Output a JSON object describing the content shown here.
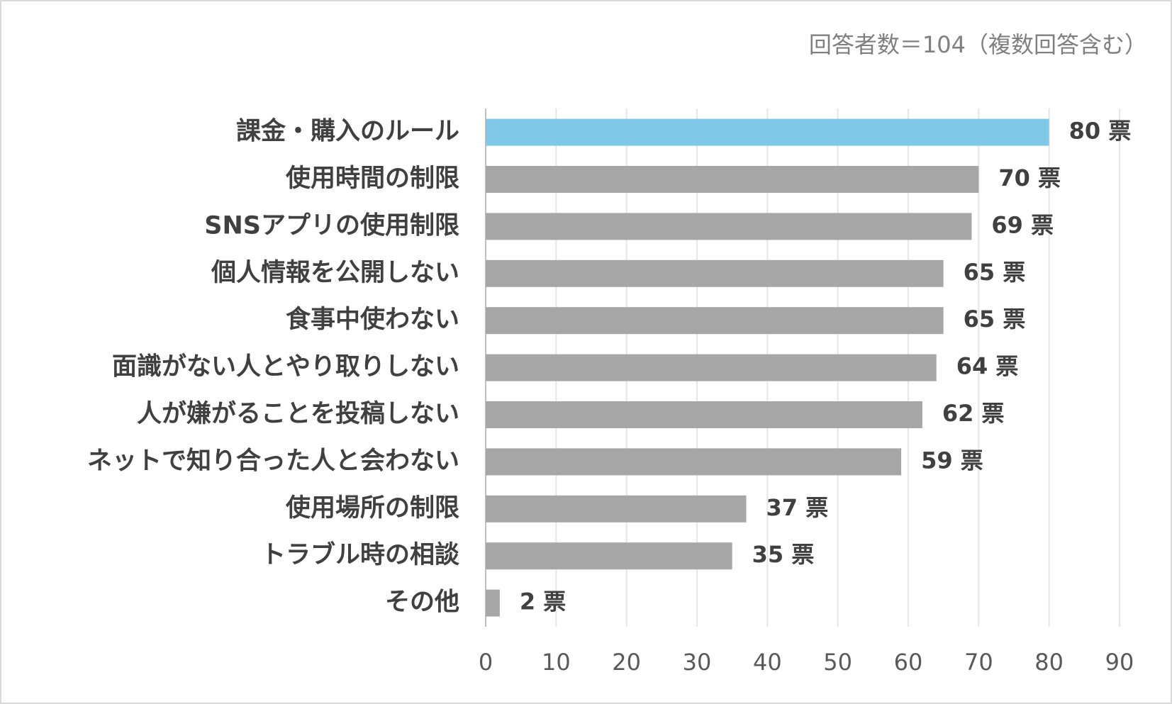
{
  "chart_data": {
    "type": "hbar",
    "subtitle": "回答者数＝104（複数回答含む）",
    "categories": [
      "課金・購入のルール",
      "使用時間の制限",
      "SNSアプリの使用制限",
      "個人情報を公開しない",
      "食事中使わない",
      "面識がない人とやり取りしない",
      "人が嫌がることを投稿しない",
      "ネットで知り合った人と会わない",
      "使用場所の制限",
      "トラブル時の相談",
      "その他"
    ],
    "values": [
      80,
      70,
      69,
      65,
      65,
      64,
      62,
      59,
      37,
      35,
      2
    ],
    "value_labels": [
      "80 票",
      "70 票",
      "69 票",
      "65 票",
      "65 票",
      "64 票",
      "62 票",
      "59 票",
      "37 票",
      "35 票",
      "2 票"
    ],
    "colors": [
      "#7fc8e8",
      "#a6a6a6",
      "#a6a6a6",
      "#a6a6a6",
      "#a6a6a6",
      "#a6a6a6",
      "#a6a6a6",
      "#a6a6a6",
      "#a6a6a6",
      "#a6a6a6",
      "#a6a6a6"
    ],
    "xlim": [
      0,
      90
    ],
    "xticks": [
      0,
      10,
      20,
      30,
      40,
      50,
      60,
      70,
      80,
      90
    ],
    "grid": true
  }
}
